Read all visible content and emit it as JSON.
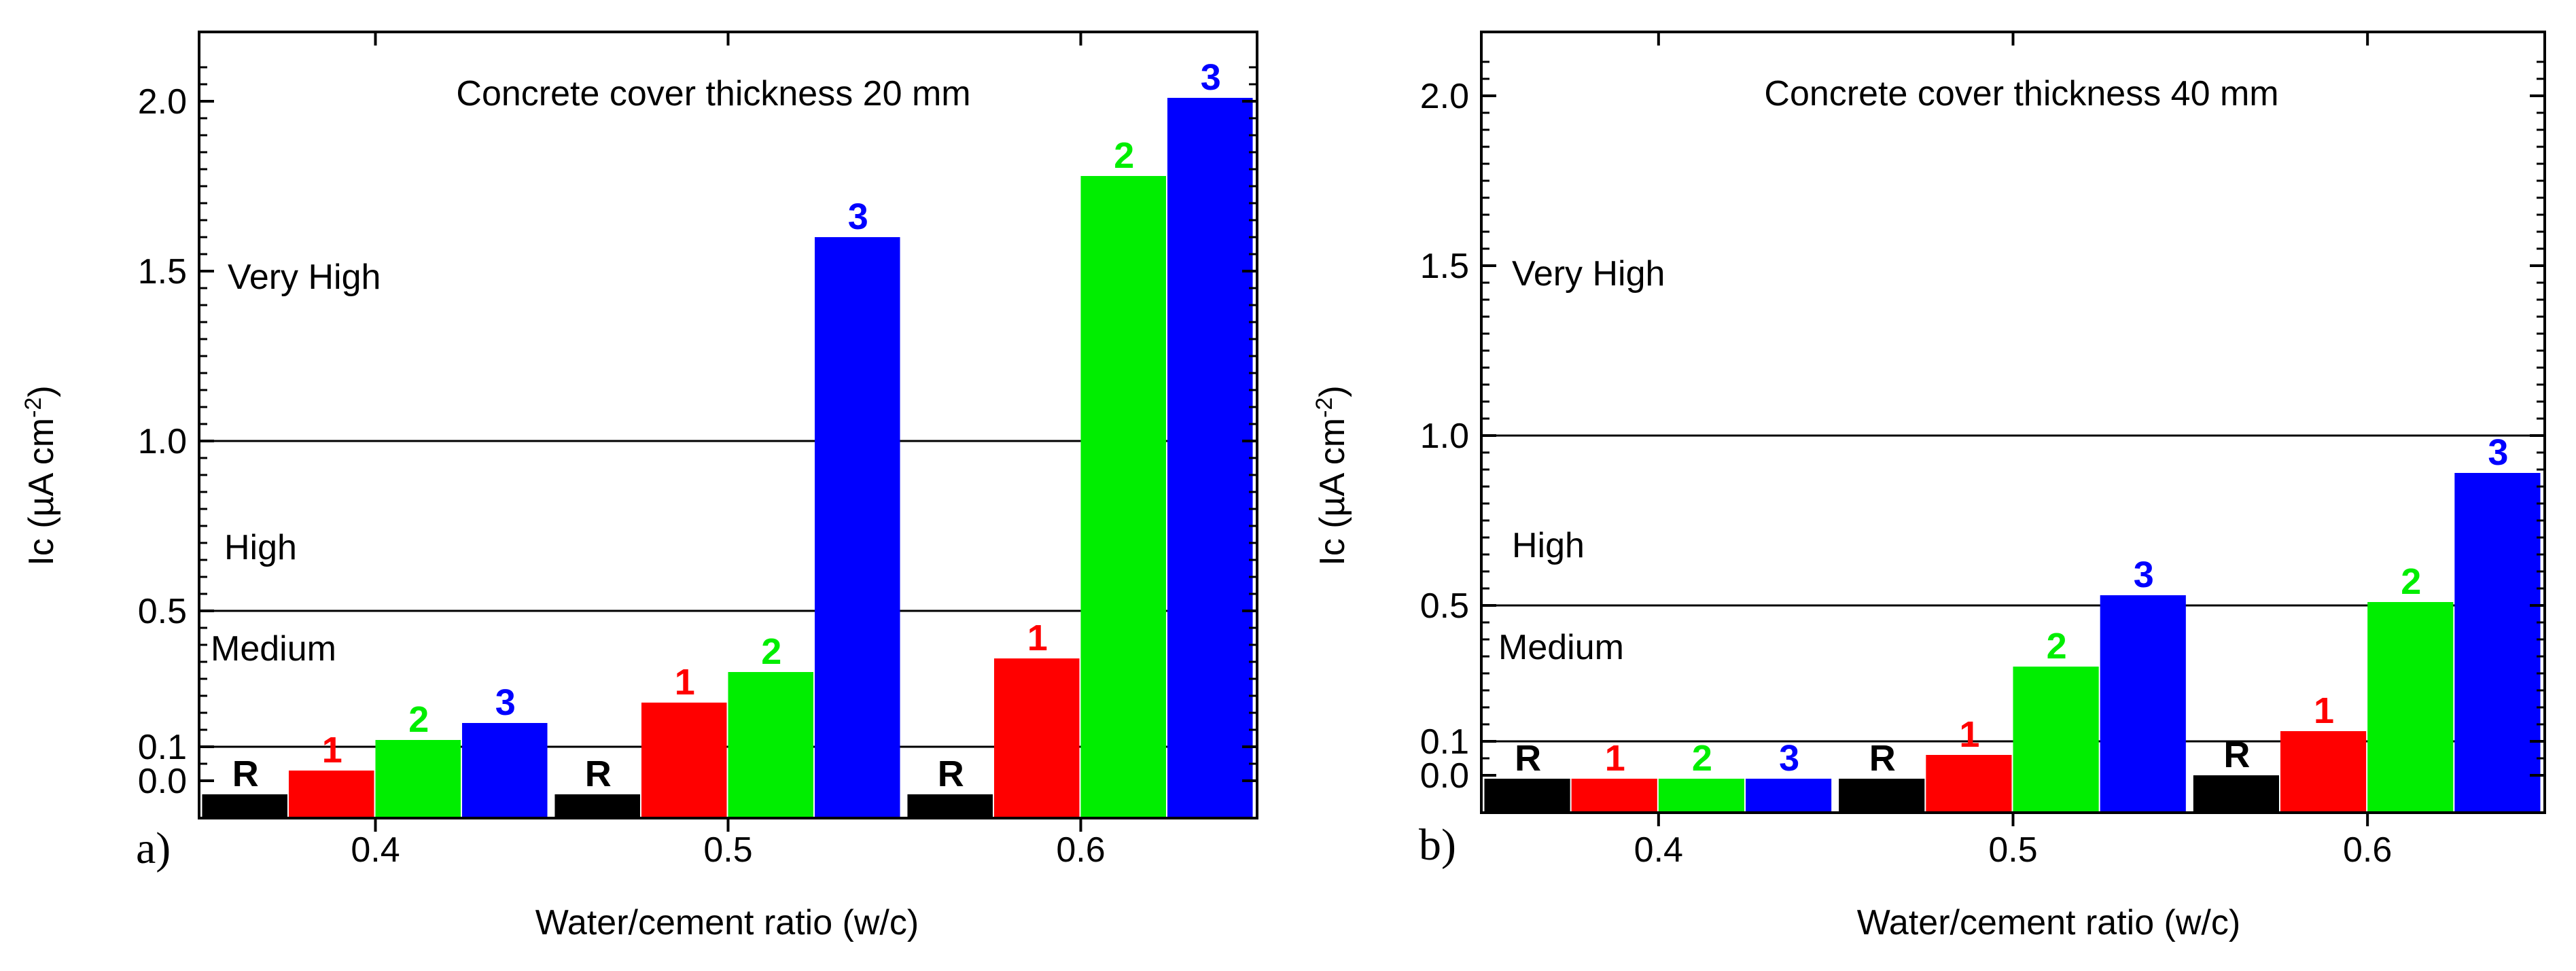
{
  "figure": {
    "panels": [
      {
        "panel_label": "a)",
        "title": "Concrete cover thickness 20 mm",
        "ylabel": "Ic (µA cm^-2)",
        "xlabel": "Water/cement ratio (w/c)",
        "zones": [
          {
            "label": "Very High",
            "value": 1.5
          },
          {
            "label": "High",
            "value": 0.75
          },
          {
            "label": "Medium",
            "value": 0.37
          }
        ]
      },
      {
        "panel_label": "b)",
        "title": "Concrete cover thickness 40 mm",
        "ylabel": "Ic (µA cm^-2)",
        "xlabel": "Water/cement ratio (w/c)",
        "zones": [
          {
            "label": "Very High",
            "value": 1.5
          },
          {
            "label": "High",
            "value": 0.75
          },
          {
            "label": "Medium",
            "value": 0.37
          }
        ]
      }
    ]
  },
  "chart_data": [
    {
      "type": "bar",
      "title": "Concrete cover thickness 20 mm",
      "xlabel": "Water/cement ratio (w/c)",
      "ylabel": "Ic (µA cm^-2)",
      "categories": [
        "0.4",
        "0.5",
        "0.6"
      ],
      "series": [
        {
          "name": "R",
          "color": "#000000",
          "values": [
            -0.04,
            -0.04,
            -0.04
          ]
        },
        {
          "name": "1",
          "color": "#ff0000",
          "values": [
            0.03,
            0.23,
            0.36
          ]
        },
        {
          "name": "2",
          "color": "#00ee00",
          "values": [
            0.12,
            0.32,
            1.78
          ]
        },
        {
          "name": "3",
          "color": "#0000ff",
          "values": [
            0.17,
            1.6,
            2.01
          ]
        }
      ],
      "yticks": [
        0.0,
        0.1,
        0.5,
        1.0,
        1.5,
        2.0
      ],
      "ylim": [
        -0.11,
        2.2
      ],
      "reference_lines": [
        0.1,
        0.5,
        1.0
      ],
      "grid": false
    },
    {
      "type": "bar",
      "title": "Concrete cover thickness 40 mm",
      "xlabel": "Water/cement ratio (w/c)",
      "ylabel": "Ic (µA cm^-2)",
      "categories": [
        "0.4",
        "0.5",
        "0.6"
      ],
      "series": [
        {
          "name": "R",
          "color": "#000000",
          "values": [
            -0.01,
            -0.01,
            0.0
          ]
        },
        {
          "name": "1",
          "color": "#ff0000",
          "values": [
            -0.01,
            0.06,
            0.13
          ]
        },
        {
          "name": "2",
          "color": "#00ee00",
          "values": [
            -0.01,
            0.32,
            0.51
          ]
        },
        {
          "name": "3",
          "color": "#0000ff",
          "values": [
            -0.01,
            0.53,
            0.89
          ]
        }
      ],
      "yticks": [
        0.0,
        0.1,
        0.5,
        1.0,
        1.5,
        2.0
      ],
      "ylim": [
        -0.11,
        2.2
      ],
      "reference_lines": [
        0.1,
        0.5,
        1.0
      ],
      "grid": false
    }
  ]
}
